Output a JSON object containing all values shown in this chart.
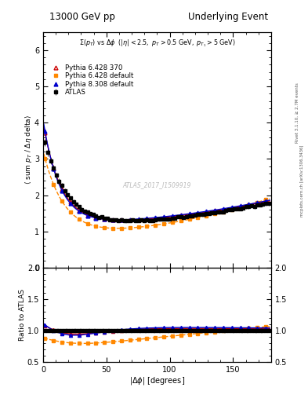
{
  "title_left": "13000 GeV pp",
  "title_right": "Underlying Event",
  "subtitle": "Σ(p_{T}) vs Δφ  (|η| < 2.5, p_{T} > 0.5 GeV, p_{T1} > 5 GeV)",
  "xlabel": "|Δ φ| [degrees]",
  "ylabel_main": "⟨ sum p_{T} / Δη delta⟩",
  "ylabel_ratio": "Ratio to ATLAS",
  "watermark": "ATLAS_2017_I1509919",
  "right_label": "Rivet 3.1.10, ≥ 2.7M events",
  "right_label2": "mcplots.cern.ch [arXiv:1306.3436]",
  "xlim": [
    0,
    180
  ],
  "ylim_main": [
    0,
    6.5
  ],
  "ylim_ratio": [
    0.5,
    2.0
  ],
  "yticks_main": [
    0,
    1,
    2,
    3,
    4,
    5,
    6
  ],
  "yticks_ratio": [
    0.5,
    1.0,
    1.5,
    2.0
  ],
  "xticks": [
    0,
    50,
    100,
    150
  ],
  "legend_entries": [
    "ATLAS",
    "Pythia 6.428 370",
    "Pythia 6.428 default",
    "Pythia 8.308 default"
  ],
  "atlas_color": "#000000",
  "p6_370_color": "#cc0000",
  "p6_def_color": "#ff8800",
  "p8_def_color": "#0000cc",
  "bg_color": "#ffffff"
}
